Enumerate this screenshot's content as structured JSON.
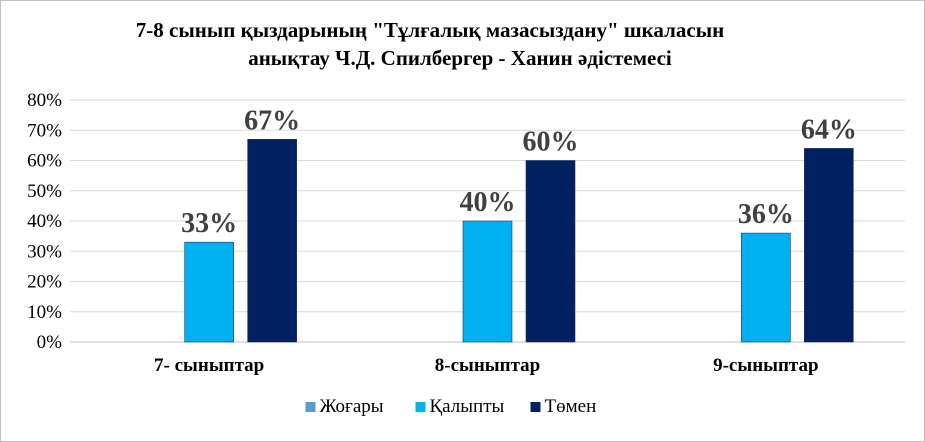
{
  "chart_data": {
    "type": "bar",
    "title_line1": "7-8 сынып  қыздарының \"Тұлғалық мазасыздану\" шкаласын",
    "title_line2": "анықтау Ч.Д. Спилбергер - Ханин әдістемесі",
    "categories": [
      "7- сыныптар",
      "8-сыныптар",
      "9-сыныптар"
    ],
    "series": [
      {
        "name": "Жоғары",
        "values": [
          0,
          0,
          0
        ],
        "color": "#5b9bd5",
        "labels": [
          "",
          "",
          ""
        ]
      },
      {
        "name": "Қалыпты",
        "values": [
          33,
          40,
          36
        ],
        "color": "#00b0f0",
        "labels": [
          "33%",
          "40%",
          "36%"
        ]
      },
      {
        "name": "Төмен",
        "values": [
          67,
          60,
          64
        ],
        "color": "#002060",
        "labels": [
          "67%",
          "60%",
          "64%"
        ]
      }
    ],
    "ylim": [
      0,
      80
    ],
    "yticks": [
      "0%",
      "10%",
      "20%",
      "30%",
      "40%",
      "50%",
      "60%",
      "70%",
      "80%"
    ],
    "grid": true,
    "legend_position": "bottom"
  }
}
